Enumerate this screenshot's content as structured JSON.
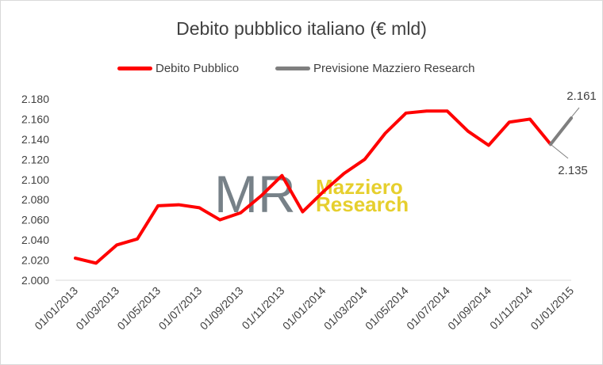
{
  "chart_data": {
    "type": "line",
    "title": "Debito pubblico italiano (€ mld)",
    "xlabel": "",
    "ylabel": "",
    "ylim": [
      2000,
      2180
    ],
    "y_ticks": [
      2000,
      2020,
      2040,
      2060,
      2080,
      2100,
      2120,
      2140,
      2160,
      2180
    ],
    "y_tick_labels": [
      "2.000",
      "2.020",
      "2.040",
      "2.060",
      "2.080",
      "2.100",
      "2.120",
      "2.140",
      "2.160",
      "2.180"
    ],
    "x_tick_labels": [
      "01/01/2013",
      "01/03/2013",
      "01/05/2013",
      "01/07/2013",
      "01/09/2013",
      "01/11/2013",
      "01/01/2014",
      "01/03/2014",
      "01/05/2014",
      "01/07/2014",
      "01/09/2014",
      "01/11/2014",
      "01/01/2015"
    ],
    "x": [
      "01/01/2013",
      "01/02/2013",
      "01/03/2013",
      "01/04/2013",
      "01/05/2013",
      "01/06/2013",
      "01/07/2013",
      "01/08/2013",
      "01/09/2013",
      "01/10/2013",
      "01/11/2013",
      "01/12/2013",
      "01/01/2014",
      "01/02/2014",
      "01/03/2014",
      "01/04/2014",
      "01/05/2014",
      "01/06/2014",
      "01/07/2014",
      "01/08/2014",
      "01/09/2014",
      "01/10/2014",
      "01/11/2014",
      "01/12/2014",
      "01/01/2015"
    ],
    "grid": false,
    "legend_position": "top",
    "series": [
      {
        "name": "Debito Pubblico",
        "color": "#ff0000",
        "values": [
          2022,
          2017,
          2035,
          2041,
          2074,
          2075,
          2072,
          2060,
          2067,
          2084,
          2104,
          2068,
          2088,
          2106,
          2120,
          2146,
          2166,
          2168,
          2168,
          2148,
          2134,
          2157,
          2160,
          2135,
          null
        ]
      },
      {
        "name": "Previsione Mazziero Research",
        "color": "#7f7f7f",
        "values": [
          null,
          null,
          null,
          null,
          null,
          null,
          null,
          null,
          null,
          null,
          null,
          null,
          null,
          null,
          null,
          null,
          null,
          null,
          null,
          null,
          null,
          null,
          null,
          2135,
          2161
        ]
      }
    ],
    "annotations": [
      {
        "text": "2.161",
        "x": "01/01/2015",
        "y": 2161
      },
      {
        "text": "2.135",
        "x": "01/12/2014",
        "y": 2135
      }
    ],
    "watermark": {
      "logo_text": "MR",
      "line1": "Mazziero",
      "line2": "Research",
      "logo_color": "#5f6b73",
      "text_color": "#e6cf2e"
    }
  }
}
